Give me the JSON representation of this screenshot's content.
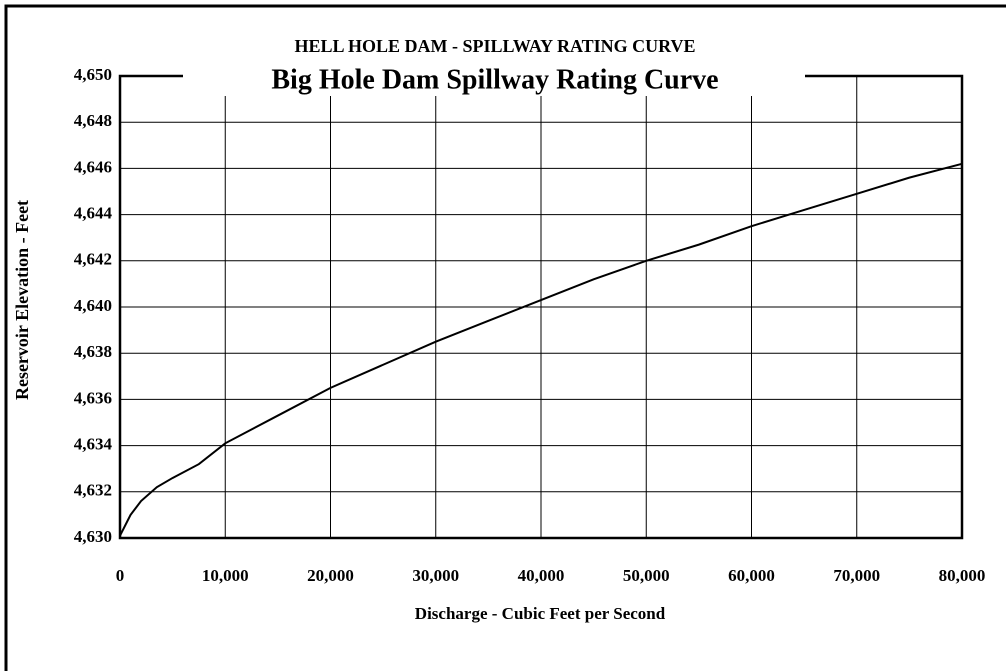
{
  "chart_data": {
    "type": "line",
    "title": "Big Hole Dam Spillway Rating Curve",
    "subtitle": "HELL HOLE DAM - SPILLWAY RATING CURVE",
    "x_label": "Discharge - Cubic Feet per Second",
    "y_label": "Reservoir Elevation - Feet",
    "x": [
      0,
      1000,
      2000,
      3500,
      5000,
      7500,
      10000,
      15000,
      20000,
      25000,
      30000,
      35000,
      40000,
      45000,
      50000,
      55000,
      60000,
      65000,
      70000,
      75000,
      80000
    ],
    "series": [
      {
        "name": "Rating curve",
        "color": "#000000",
        "values": [
          4630.1,
          4631,
          4631.6,
          4632.2,
          4632.6,
          4633.2,
          4634.1,
          4635.3,
          4636.5,
          4637.5,
          4638.5,
          4639.4,
          4640.3,
          4641.2,
          4642,
          4642.7,
          4643.5,
          4644.2,
          4644.9,
          4645.6,
          4646.2
        ]
      }
    ],
    "xlim": [
      0,
      80000
    ],
    "xticks": [
      0,
      {
        "value": 10000,
        "label": "10,000"
      },
      {
        "value": 20000,
        "label": "20,000"
      },
      {
        "value": 30000,
        "label": "30,000"
      },
      {
        "value": 40000,
        "label": "40,000"
      },
      {
        "value": 50000,
        "label": "50,000"
      },
      {
        "value": 60000,
        "label": "60,000"
      },
      {
        "value": 70000,
        "label": "70,000"
      },
      {
        "value": 80000,
        "label": "80,000"
      }
    ],
    "ylim": [
      4630,
      4650
    ],
    "yticks": [
      {
        "value": 4630,
        "label": "4,630"
      },
      {
        "value": 4632,
        "label": "4,632"
      },
      {
        "value": 4634,
        "label": "4,634"
      },
      {
        "value": 4636,
        "label": "4,636"
      },
      {
        "value": 4638,
        "label": "4,638"
      },
      {
        "value": 4640,
        "label": "4,640"
      },
      {
        "value": 4642,
        "label": "4,642"
      },
      {
        "value": 4644,
        "label": "4,644"
      },
      {
        "value": 4646,
        "label": "4,646"
      },
      {
        "value": 4648,
        "label": "4,648"
      },
      {
        "value": 4650,
        "label": "4,650"
      }
    ],
    "grid": true
  }
}
